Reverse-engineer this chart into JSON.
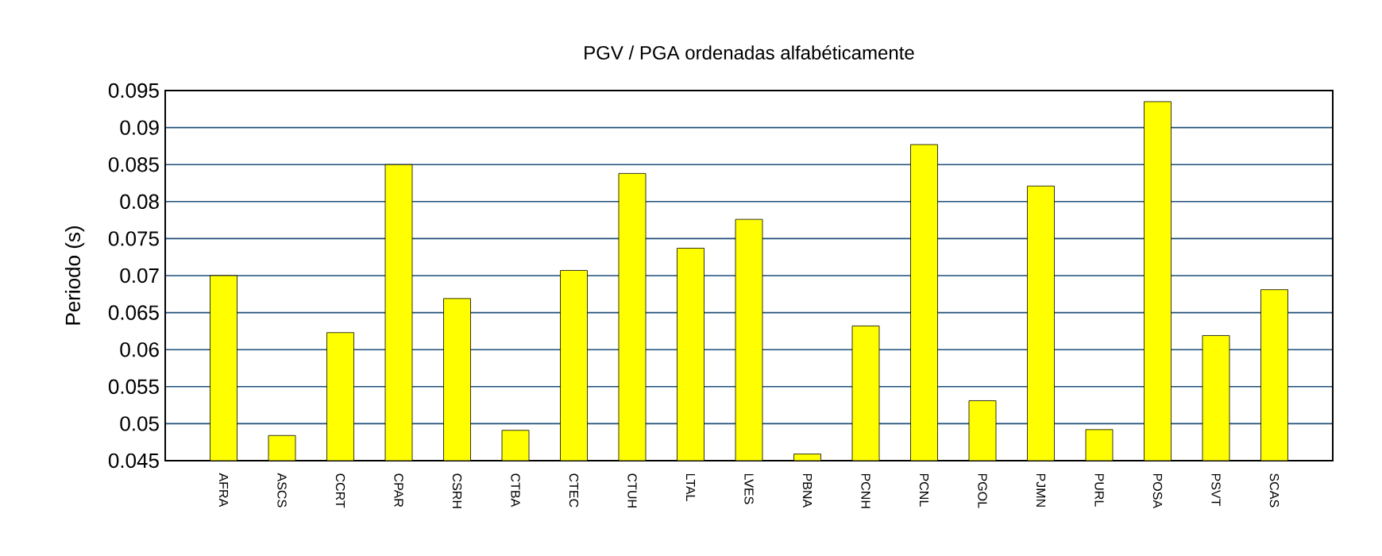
{
  "chart_data": {
    "type": "bar",
    "title": "PGV / PGA ordenadas alfabéticamente",
    "ylabel": "Periodo (s)",
    "categories": [
      "AFRA",
      "ASCS",
      "CCRT",
      "CPAR",
      "CSRH",
      "CTBA",
      "CTEC",
      "CTUH",
      "LTAL",
      "LVES",
      "PBNA",
      "PCNH",
      "PCNL",
      "PGOL",
      "PJMN",
      "PURL",
      "POSA",
      "PSVT",
      "SCAS"
    ],
    "values": [
      0.07,
      0.0484,
      0.0623,
      0.085,
      0.0669,
      0.0491,
      0.0707,
      0.0838,
      0.0737,
      0.0776,
      0.0459,
      0.0632,
      0.0877,
      0.0531,
      0.0821,
      0.0492,
      0.0935,
      0.0619,
      0.0681
    ],
    "color": "#ffff00",
    "ylim": [
      0.045,
      0.095
    ],
    "yticks": [
      0.045,
      0.05,
      0.055,
      0.06,
      0.065,
      0.07,
      0.075,
      0.08,
      0.085,
      0.09,
      0.095
    ],
    "grid": "y"
  }
}
